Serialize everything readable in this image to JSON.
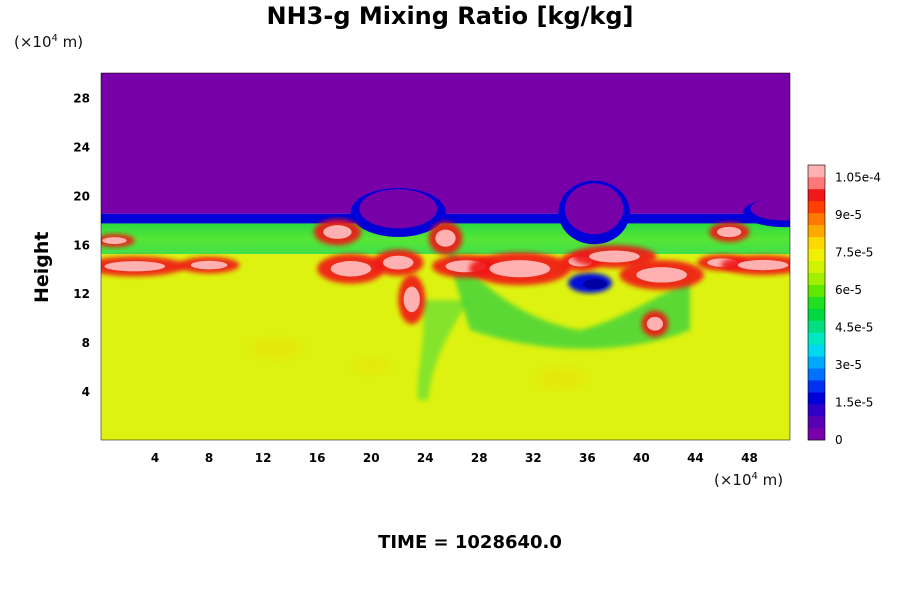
{
  "chart_data": {
    "type": "heatmap",
    "title": "NH3-g Mixing Ratio [kg/kg]",
    "ylabel": "Height",
    "x_unit": {
      "prefix": "(×10",
      "exp": "4",
      "suffix": " m)"
    },
    "y_unit": {
      "prefix": "(×10",
      "exp": "4",
      "suffix": " m)"
    },
    "xlim": [
      0,
      51
    ],
    "ylim": [
      0,
      30
    ],
    "x_ticks": [
      4,
      8,
      12,
      16,
      20,
      24,
      28,
      32,
      36,
      40,
      44,
      48
    ],
    "y_ticks": [
      4,
      8,
      12,
      16,
      20,
      24,
      28
    ],
    "colorbar": {
      "range": [
        0,
        0.00011
      ],
      "tick_labels": [
        "0",
        "1.5e-5",
        "3e-5",
        "4.5e-5",
        "6e-5",
        "7.5e-5",
        "9e-5",
        "1.05e-4"
      ],
      "tick_values": [
        0,
        1.5e-05,
        3e-05,
        4.5e-05,
        6e-05,
        7.5e-05,
        9e-05,
        0.000105
      ],
      "colors": [
        "#7800a8",
        "#5a00b4",
        "#3000c8",
        "#0000d8",
        "#0030f0",
        "#0070ff",
        "#00a8ff",
        "#00d8f0",
        "#00e8c0",
        "#00e080",
        "#00d840",
        "#20e020",
        "#60e800",
        "#a0f000",
        "#d0f400",
        "#f0f000",
        "#ffd800",
        "#ffa800",
        "#ff7800",
        "#ff4000",
        "#f01818",
        "#ff7878",
        "#ffb0b0"
      ]
    },
    "regions": [
      {
        "name": "upper-layer",
        "y_range": [
          18.5,
          30
        ],
        "value": 0,
        "color": "#7800a8"
      },
      {
        "name": "transition-band",
        "y_range": [
          17.7,
          18.5
        ],
        "value": 2e-05,
        "color": "#0000d8"
      },
      {
        "name": "mid-layer",
        "y_range": [
          15.2,
          17.7
        ],
        "value": 6e-05,
        "color": "#40e040"
      },
      {
        "name": "lower-layer",
        "y_range": [
          0,
          15.2
        ],
        "value": 7.5e-05,
        "color": "#ddf210"
      }
    ]
  },
  "footer": {
    "text": "TIME = 1028640.0"
  }
}
